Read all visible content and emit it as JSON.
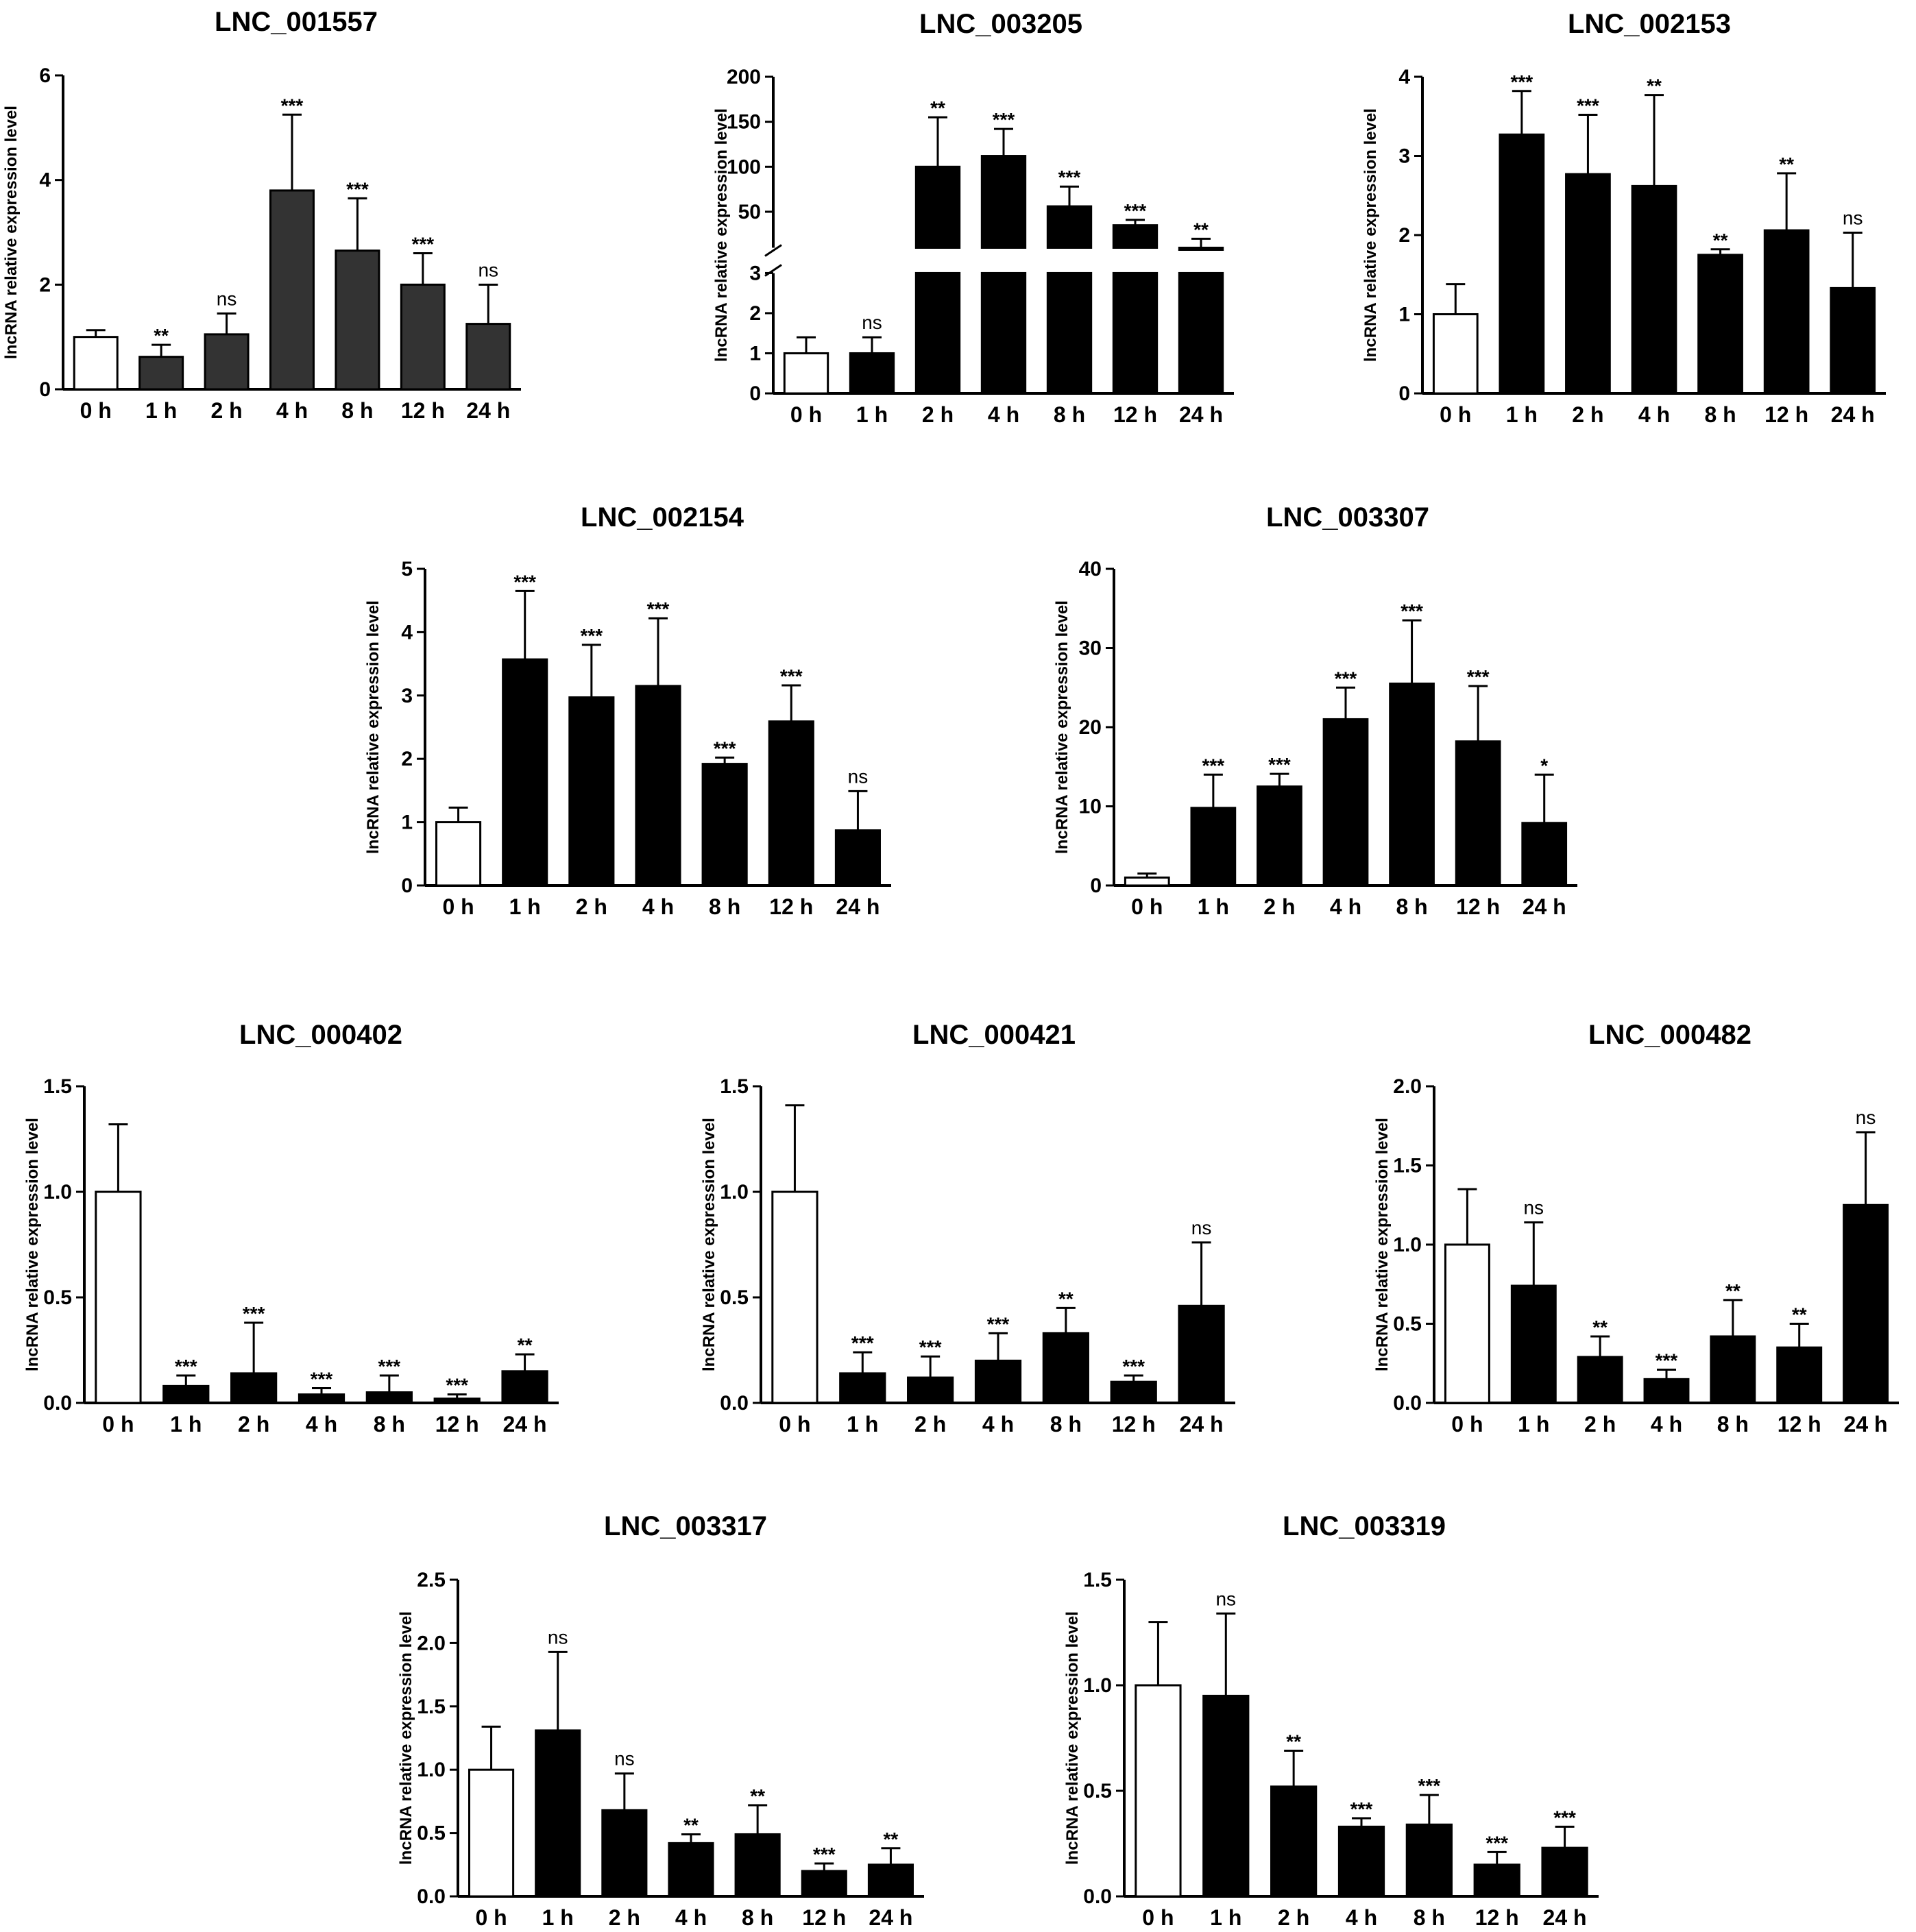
{
  "chart_data": [
    {
      "type": "bar",
      "title": "LNC_001557",
      "ylabel": "lncRNA relative expression level",
      "categories": [
        "0 h",
        "1 h",
        "2 h",
        "4 h",
        "8 h",
        "12 h",
        "24 h"
      ],
      "values": [
        1.0,
        0.62,
        1.05,
        3.8,
        2.65,
        2.0,
        1.25
      ],
      "errors": [
        0.13,
        0.23,
        0.4,
        1.45,
        1.0,
        0.6,
        0.75
      ],
      "significance": [
        "",
        "**",
        "ns",
        "***",
        "***",
        "***",
        "ns"
      ],
      "ylim": [
        0,
        6
      ],
      "yticks": [
        0,
        2,
        4,
        6
      ],
      "bar_color": "#333333",
      "first_bar_color": "#ffffff"
    },
    {
      "type": "bar",
      "title": "LNC_003205",
      "ylabel": "lncRNA relative expression level",
      "categories": [
        "0 h",
        "1 h",
        "2 h",
        "4 h",
        "8 h",
        "12 h",
        "24 h"
      ],
      "values": [
        1.0,
        1.0,
        100,
        112,
        56,
        35,
        10
      ],
      "errors": [
        0.4,
        0.4,
        55,
        30,
        22,
        6,
        10
      ],
      "significance": [
        "",
        "ns",
        "**",
        "***",
        "***",
        "***",
        "**"
      ],
      "ylim": [
        0,
        200
      ],
      "broken_axis": {
        "lower_max": 3,
        "upper_min": 10,
        "upper_max": 200
      },
      "yticks_lower": [
        0,
        1,
        2,
        3
      ],
      "yticks_upper": [
        50,
        100,
        150,
        200
      ],
      "bar_color": "#000000",
      "first_bar_color": "#ffffff"
    },
    {
      "type": "bar",
      "title": "LNC_002153",
      "ylabel": "lncRNA relative expression level",
      "categories": [
        "0 h",
        "1 h",
        "2 h",
        "4 h",
        "8 h",
        "12 h",
        "24 h"
      ],
      "values": [
        1.0,
        3.27,
        2.77,
        2.62,
        1.75,
        2.06,
        1.33
      ],
      "errors": [
        0.38,
        0.55,
        0.75,
        1.15,
        0.07,
        0.72,
        0.7
      ],
      "significance": [
        "",
        "***",
        "***",
        "**",
        "**",
        "**",
        "ns"
      ],
      "ylim": [
        0,
        4
      ],
      "yticks": [
        0,
        1,
        2,
        3,
        4
      ],
      "bar_color": "#000000",
      "first_bar_color": "#ffffff"
    },
    {
      "type": "bar",
      "title": "LNC_002154",
      "ylabel": "lncRNA relative expression level",
      "categories": [
        "0 h",
        "1 h",
        "2 h",
        "4 h",
        "8 h",
        "12 h",
        "24 h"
      ],
      "values": [
        1.0,
        3.57,
        2.97,
        3.15,
        1.92,
        2.59,
        0.87
      ],
      "errors": [
        0.23,
        1.08,
        0.83,
        1.07,
        0.1,
        0.57,
        0.62
      ],
      "significance": [
        "",
        "***",
        "***",
        "***",
        "***",
        "***",
        "ns"
      ],
      "ylim": [
        0,
        5
      ],
      "yticks": [
        0,
        1,
        2,
        3,
        4,
        5
      ],
      "bar_color": "#000000",
      "first_bar_color": "#ffffff"
    },
    {
      "type": "bar",
      "title": "LNC_003307",
      "ylabel": "lncRNA relative expression level",
      "categories": [
        "0 h",
        "1 h",
        "2 h",
        "4 h",
        "8 h",
        "12 h",
        "24 h"
      ],
      "values": [
        1.0,
        9.8,
        12.5,
        21.0,
        25.5,
        18.2,
        7.9
      ],
      "errors": [
        0.5,
        4.2,
        1.6,
        4.0,
        8.0,
        7.0,
        6.1
      ],
      "significance": [
        "",
        "***",
        "***",
        "***",
        "***",
        "***",
        "*"
      ],
      "ylim": [
        0,
        40
      ],
      "yticks": [
        0,
        10,
        20,
        30,
        40
      ],
      "bar_color": "#000000",
      "first_bar_color": "#ffffff"
    },
    {
      "type": "bar",
      "title": "LNC_000402",
      "ylabel": "lncRNA relative expression level",
      "categories": [
        "0 h",
        "1 h",
        "2 h",
        "4 h",
        "8 h",
        "12 h",
        "24 h"
      ],
      "values": [
        1.0,
        0.08,
        0.14,
        0.04,
        0.05,
        0.02,
        0.15
      ],
      "errors": [
        0.32,
        0.05,
        0.24,
        0.03,
        0.08,
        0.02,
        0.08
      ],
      "significance": [
        "",
        "***",
        "***",
        "***",
        "***",
        "***",
        "**"
      ],
      "ylim": [
        0,
        1.5
      ],
      "yticks": [
        0.0,
        0.5,
        1.0,
        1.5
      ],
      "bar_color": "#000000",
      "first_bar_color": "#ffffff"
    },
    {
      "type": "bar",
      "title": "LNC_000421",
      "ylabel": "lncRNA relative expression level",
      "categories": [
        "0 h",
        "1 h",
        "2 h",
        "4 h",
        "8 h",
        "12 h",
        "24 h"
      ],
      "values": [
        1.0,
        0.14,
        0.12,
        0.2,
        0.33,
        0.1,
        0.46
      ],
      "errors": [
        0.41,
        0.1,
        0.1,
        0.13,
        0.12,
        0.03,
        0.3
      ],
      "significance": [
        "",
        "***",
        "***",
        "***",
        "**",
        "***",
        "ns"
      ],
      "ylim": [
        0,
        1.5
      ],
      "yticks": [
        0.0,
        0.5,
        1.0,
        1.5
      ],
      "bar_color": "#000000",
      "first_bar_color": "#ffffff"
    },
    {
      "type": "bar",
      "title": "LNC_000482",
      "ylabel": "lncRNA relative expression level",
      "categories": [
        "0 h",
        "1 h",
        "2 h",
        "4 h",
        "8 h",
        "12 h",
        "24 h"
      ],
      "values": [
        1.0,
        0.74,
        0.29,
        0.15,
        0.42,
        0.35,
        1.25
      ],
      "errors": [
        0.35,
        0.4,
        0.13,
        0.06,
        0.23,
        0.15,
        0.46
      ],
      "significance": [
        "",
        "ns",
        "**",
        "***",
        "**",
        "**",
        "ns"
      ],
      "ylim": [
        0,
        2.0
      ],
      "yticks": [
        0.0,
        0.5,
        1.0,
        1.5,
        2.0
      ],
      "bar_color": "#000000",
      "first_bar_color": "#ffffff"
    },
    {
      "type": "bar",
      "title": "LNC_003317",
      "ylabel": "lncRNA relative expression level",
      "categories": [
        "0 h",
        "1 h",
        "2 h",
        "4 h",
        "8 h",
        "12 h",
        "24 h"
      ],
      "values": [
        1.0,
        1.31,
        0.68,
        0.42,
        0.49,
        0.2,
        0.25
      ],
      "errors": [
        0.34,
        0.62,
        0.29,
        0.07,
        0.23,
        0.06,
        0.13
      ],
      "significance": [
        "",
        "ns",
        "ns",
        "**",
        "**",
        "***",
        "**"
      ],
      "ylim": [
        0,
        2.5
      ],
      "yticks": [
        0.0,
        0.5,
        1.0,
        1.5,
        2.0,
        2.5
      ],
      "bar_color": "#000000",
      "first_bar_color": "#ffffff"
    },
    {
      "type": "bar",
      "title": "LNC_003319",
      "ylabel": "lncRNA relative expression level",
      "categories": [
        "0 h",
        "1 h",
        "2 h",
        "4 h",
        "8 h",
        "12 h",
        "24 h"
      ],
      "values": [
        1.0,
        0.95,
        0.52,
        0.33,
        0.34,
        0.15,
        0.23
      ],
      "errors": [
        0.3,
        0.39,
        0.17,
        0.04,
        0.14,
        0.06,
        0.1
      ],
      "significance": [
        "",
        "ns",
        "**",
        "***",
        "***",
        "***",
        "***"
      ],
      "ylim": [
        0,
        1.5
      ],
      "yticks": [
        0.0,
        0.5,
        1.0,
        1.5
      ],
      "bar_color": "#000000",
      "first_bar_color": "#ffffff"
    }
  ]
}
